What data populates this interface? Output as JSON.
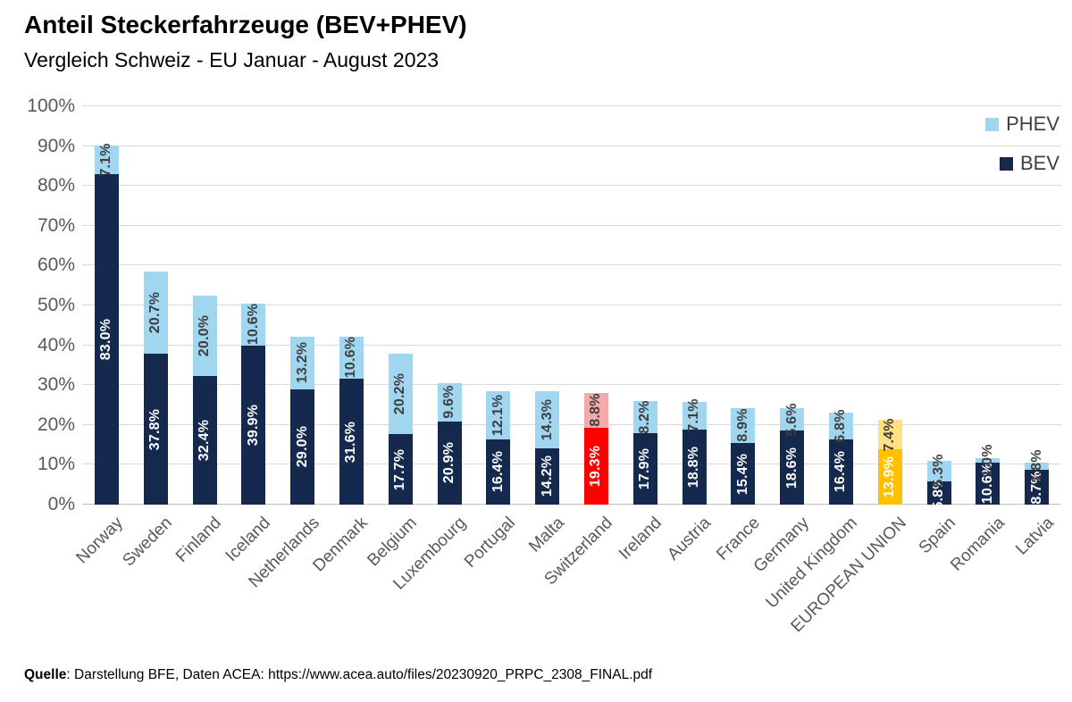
{
  "header": {
    "title": "Anteil Steckerfahrzeuge (BEV+PHEV)",
    "subtitle": "Vergleich Schweiz - EU Januar - August 2023"
  },
  "legend": {
    "items": [
      {
        "label": "PHEV",
        "color": "#A0D6F0"
      },
      {
        "label": "BEV",
        "color": "#15294E"
      }
    ]
  },
  "y_axis": {
    "ticks": [
      {
        "label": "0%",
        "value": 0
      },
      {
        "label": "10%",
        "value": 10
      },
      {
        "label": "20%",
        "value": 20
      },
      {
        "label": "30%",
        "value": 30
      },
      {
        "label": "40%",
        "value": 40
      },
      {
        "label": "50%",
        "value": 50
      },
      {
        "label": "60%",
        "value": 60
      },
      {
        "label": "70%",
        "value": 70
      },
      {
        "label": "80%",
        "value": 80
      },
      {
        "label": "90%",
        "value": 90
      },
      {
        "label": "100%",
        "value": 100
      }
    ]
  },
  "colors": {
    "bev_default": "#15294E",
    "phev_default": "#A0D6F0",
    "grid": "#D9D9D9",
    "baseline": "#BFBFBF",
    "value_label_on_dark": "#FFFFFF",
    "value_label_on_light": "#3F3F3F",
    "axis_text": "#595959"
  },
  "chart_data": {
    "type": "bar",
    "stacked": true,
    "title": "Anteil Steckerfahrzeuge (BEV+PHEV)",
    "subtitle": "Vergleich Schweiz - EU Januar - August 2023",
    "xlabel": "",
    "ylabel": "",
    "ylim": [
      0,
      100
    ],
    "ytick_step": 10,
    "grid": true,
    "legend_position": "top-right",
    "categories": [
      "Norway",
      "Sweden",
      "Finland",
      "Iceland",
      "Netherlands",
      "Denmark",
      "Belgium",
      "Luxembourg",
      "Portugal",
      "Malta",
      "Switzerland",
      "Ireland",
      "Austria",
      "France",
      "Germany",
      "United Kingdom",
      "EUROPEAN UNION",
      "Spain",
      "Romania",
      "Latvia"
    ],
    "series": [
      {
        "name": "BEV",
        "values": [
          83.0,
          37.8,
          32.4,
          39.9,
          29.0,
          31.6,
          17.7,
          20.9,
          16.4,
          14.2,
          19.3,
          17.9,
          18.8,
          15.4,
          18.6,
          16.4,
          13.9,
          5.8,
          10.6,
          8.7
        ],
        "labels": [
          "83.0%",
          "37.8%",
          "32.4%",
          "39.9%",
          "29.0%",
          "31.6%",
          "17.7%",
          "20.9%",
          "16.4%",
          "14.2%",
          "19.3%",
          "17.9%",
          "18.8%",
          "15.4%",
          "18.6%",
          "16.4%",
          "13.9%",
          "5.8%",
          "10.6%",
          "8.7%"
        ]
      },
      {
        "name": "PHEV",
        "values": [
          7.1,
          20.7,
          20.0,
          10.6,
          13.2,
          10.6,
          20.2,
          9.6,
          12.1,
          14.3,
          8.8,
          8.2,
          7.1,
          8.9,
          5.6,
          6.8,
          7.4,
          5.3,
          1.0,
          1.8
        ],
        "labels": [
          "7.1%",
          "20.7%",
          "20.0%",
          "10.6%",
          "13.2%",
          "10.6%",
          "20.2%",
          "9.6%",
          "12.1%",
          "14.3%",
          "8.8%",
          "8.2%",
          "7.1%",
          "8.9%",
          "5.6%",
          "6.8%",
          "7.4%",
          "5.3%",
          "1.0%",
          "1.8%"
        ]
      }
    ],
    "color_overrides": {
      "Switzerland": {
        "BEV": "#FF0000",
        "PHEV": "#F5A9AB"
      },
      "EUROPEAN UNION": {
        "BEV": "#FFC000",
        "PHEV": "#FFE083"
      }
    }
  },
  "source": {
    "label": "Quelle",
    "text": ": Darstellung BFE, Daten ACEA: https://www.acea.auto/files/20230920_PRPC_2308_FINAL.pdf"
  }
}
